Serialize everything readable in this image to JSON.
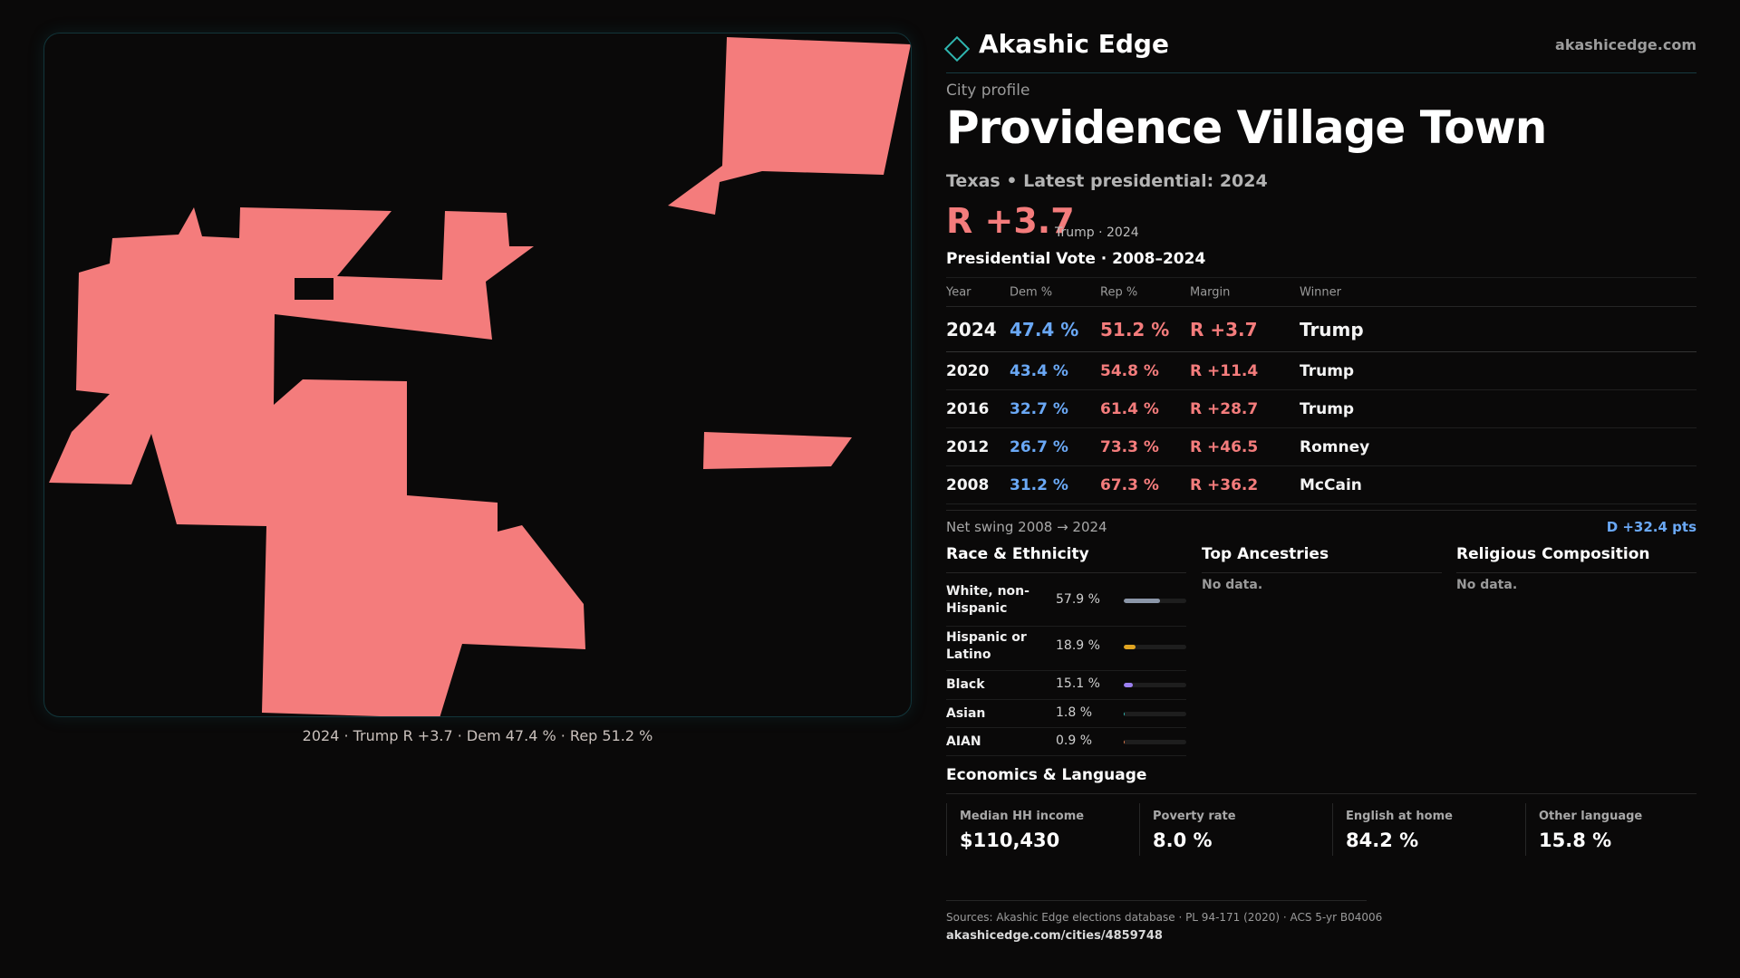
{
  "brand": {
    "name": "Akashic Edge",
    "site": "akashicedge.com"
  },
  "profile": {
    "eyebrow": "City profile",
    "title": "Providence Village Town",
    "subtitle": "Texas • Latest presidential: 2024",
    "headline_margin": "R +3.7",
    "headline_note": "Trump · 2024"
  },
  "map": {
    "fill_color": "#f47c7c",
    "caption": "2024 · Trump R +3.7 · Dem 47.4 % · Rep 51.2 %"
  },
  "vote_table": {
    "title": "Presidential Vote · 2008–2024",
    "headers": {
      "year": "Year",
      "dem": "Dem %",
      "rep": "Rep %",
      "margin": "Margin",
      "winner": "Winner"
    },
    "rows": [
      {
        "year": "2024",
        "dem": "47.4 %",
        "rep": "51.2 %",
        "margin": "R +3.7",
        "winner": "Trump"
      },
      {
        "year": "2020",
        "dem": "43.4 %",
        "rep": "54.8 %",
        "margin": "R +11.4",
        "winner": "Trump"
      },
      {
        "year": "2016",
        "dem": "32.7 %",
        "rep": "61.4 %",
        "margin": "R +28.7",
        "winner": "Trump"
      },
      {
        "year": "2012",
        "dem": "26.7 %",
        "rep": "73.3 %",
        "margin": "R +46.5",
        "winner": "Romney"
      },
      {
        "year": "2008",
        "dem": "31.2 %",
        "rep": "67.3 %",
        "margin": "R +36.2",
        "winner": "McCain"
      }
    ],
    "swing_label": "Net swing 2008 → 2024",
    "swing_value": "D +32.4 pts"
  },
  "race": {
    "title": "Race & Ethnicity",
    "items": [
      {
        "label": "White, non-Hispanic",
        "value": "57.9 %",
        "share": 0.579,
        "color": "#8b96a8"
      },
      {
        "label": "Hispanic or Latino",
        "value": "18.9 %",
        "share": 0.189,
        "color": "#e0a421"
      },
      {
        "label": "Black",
        "value": "15.1 %",
        "share": 0.151,
        "color": "#9b7ff0"
      },
      {
        "label": "Asian",
        "value": "1.8 %",
        "share": 0.018,
        "color": "#2fb6b0"
      },
      {
        "label": "AIAN",
        "value": "0.9 %",
        "share": 0.009,
        "color": "#e07a4a"
      }
    ]
  },
  "ancestries": {
    "title": "Top Ancestries",
    "empty": "No data."
  },
  "religion": {
    "title": "Religious Composition",
    "empty": "No data."
  },
  "economics": {
    "title": "Economics & Language",
    "cells": [
      {
        "label": "Median HH income",
        "value": "$110,430"
      },
      {
        "label": "Poverty rate",
        "value": "8.0 %"
      },
      {
        "label": "English at home",
        "value": "84.2 %"
      },
      {
        "label": "Other language",
        "value": "15.8 %"
      }
    ]
  },
  "footer": {
    "sources": "Sources: Akashic Edge elections database · PL 94-171 (2020) · ACS 5-yr B04006",
    "url": "akashicedge.com/cities/4859748"
  }
}
